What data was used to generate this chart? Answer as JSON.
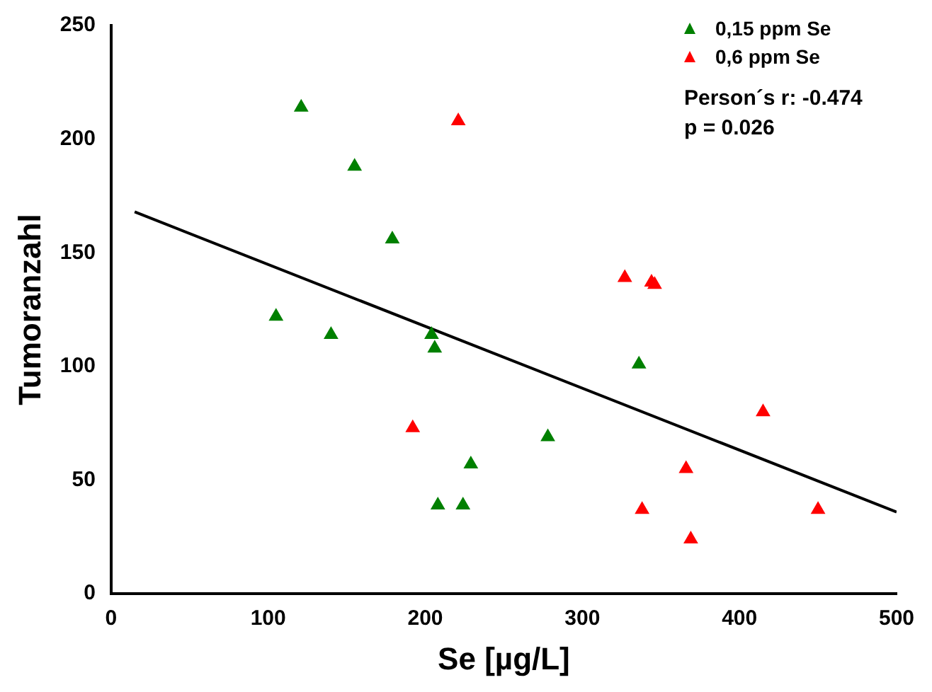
{
  "chart_data": {
    "type": "scatter",
    "xlabel": "Se [µg/L]",
    "ylabel": "Tumoranzahl",
    "xlim": [
      0,
      500
    ],
    "xticks": [
      0,
      100,
      200,
      300,
      400,
      500
    ],
    "ylim": [
      0,
      250
    ],
    "yticks": [
      0,
      50,
      100,
      150,
      200,
      250
    ],
    "grid": false,
    "legend": "top right",
    "marker": "triangle",
    "annotations": [
      "Person´s r: -0.474",
      "p = 0.026"
    ],
    "series": [
      {
        "name": "0,15 ppm Se",
        "color": "#008000",
        "x": [
          121,
          155,
          179,
          105,
          140,
          204,
          206,
          229,
          208,
          224,
          278,
          336
        ],
        "values": [
          214,
          188,
          156,
          122,
          114,
          114,
          108,
          57,
          39,
          39,
          69,
          101
        ]
      },
      {
        "name": "0,6 ppm Se",
        "color": "#ff0000",
        "x": [
          221,
          327,
          344,
          346,
          192,
          366,
          338,
          369,
          415,
          450
        ],
        "values": [
          208,
          139,
          137,
          136,
          73,
          55,
          37,
          24,
          80,
          37
        ]
      },
      {
        "type": "line",
        "marker": "none",
        "color": "#000000",
        "x": [
          15,
          500
        ],
        "values": [
          168,
          36
        ]
      }
    ]
  }
}
